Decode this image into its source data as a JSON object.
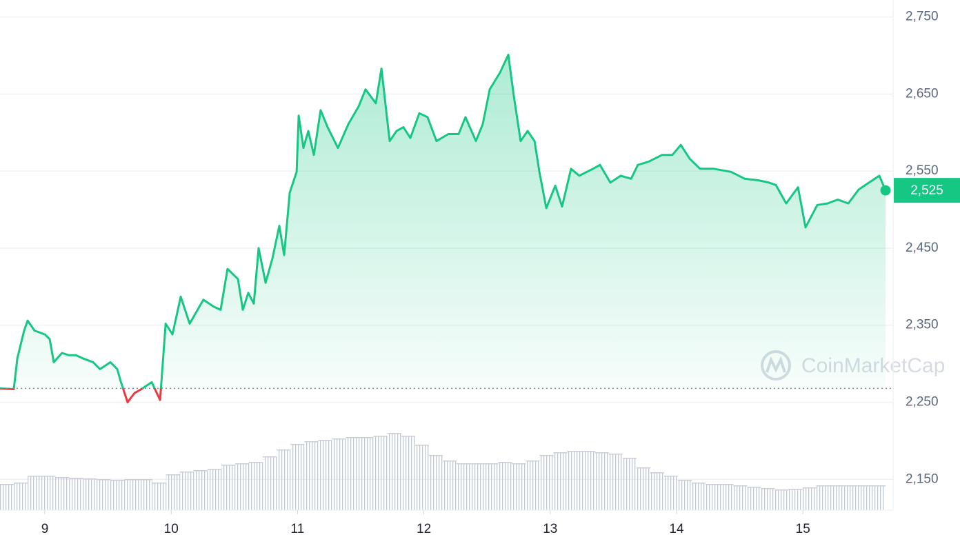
{
  "chart_data": {
    "type": "line",
    "x": [
      8.645,
      8.754,
      8.782,
      8.836,
      8.864,
      8.918,
      9.0,
      9.038,
      9.071,
      9.136,
      9.191,
      9.246,
      9.3,
      9.382,
      9.437,
      9.519,
      9.573,
      9.601,
      9.655,
      9.71,
      9.764,
      9.846,
      9.912,
      9.956,
      10.01,
      10.075,
      10.146,
      10.255,
      10.337,
      10.391,
      10.446,
      10.528,
      10.567,
      10.61,
      10.654,
      10.692,
      10.747,
      10.802,
      10.856,
      10.894,
      10.938,
      10.993,
      11.009,
      11.047,
      11.085,
      11.129,
      11.183,
      11.238,
      11.32,
      11.402,
      11.484,
      11.538,
      11.62,
      11.664,
      11.729,
      11.784,
      11.838,
      11.893,
      11.964,
      12.029,
      12.1,
      12.193,
      12.275,
      12.329,
      12.412,
      12.466,
      12.521,
      12.603,
      12.668,
      12.712,
      12.766,
      12.821,
      12.876,
      12.914,
      12.969,
      13.04,
      13.094,
      13.165,
      13.23,
      13.339,
      13.394,
      13.476,
      13.558,
      13.64,
      13.694,
      13.776,
      13.886,
      13.967,
      14.033,
      14.104,
      14.186,
      14.295,
      14.431,
      14.54,
      14.65,
      14.732,
      14.786,
      14.868,
      14.961,
      15.021,
      15.114,
      15.195,
      15.277,
      15.359,
      15.441,
      15.523,
      15.605,
      15.654
    ],
    "values": [
      2268,
      2267,
      2307,
      2343,
      2356,
      2343,
      2338,
      2332,
      2302,
      2314,
      2311,
      2311,
      2307,
      2302,
      2293,
      2302,
      2293,
      2277,
      2250,
      2262,
      2267,
      2276,
      2253,
      2352,
      2338,
      2387,
      2352,
      2383,
      2374,
      2370,
      2423,
      2410,
      2370,
      2392,
      2378,
      2450,
      2405,
      2437,
      2479,
      2441,
      2522,
      2549,
      2622,
      2580,
      2602,
      2571,
      2629,
      2607,
      2580,
      2611,
      2634,
      2656,
      2638,
      2683,
      2589,
      2602,
      2607,
      2593,
      2625,
      2620,
      2589,
      2598,
      2598,
      2620,
      2589,
      2611,
      2656,
      2678,
      2701,
      2647,
      2589,
      2602,
      2589,
      2549,
      2502,
      2531,
      2504,
      2553,
      2544,
      2553,
      2558,
      2535,
      2544,
      2540,
      2558,
      2562,
      2571,
      2571,
      2584,
      2566,
      2553,
      2553,
      2549,
      2540,
      2538,
      2535,
      2532,
      2508,
      2529,
      2477,
      2506,
      2508,
      2513,
      2508,
      2526,
      2535,
      2544,
      2525
    ],
    "up_color": "#16c784",
    "down_color": "#ea3943",
    "reference_line": 2268,
    "last_price_label": {
      "value": 2525,
      "label": "2,525"
    },
    "volume": {
      "values": [
        38,
        40,
        50,
        50,
        48,
        47,
        46,
        45,
        44,
        45,
        45,
        40,
        52,
        56,
        58,
        60,
        66,
        68,
        70,
        78,
        88,
        96,
        100,
        102,
        104,
        106,
        106,
        108,
        112,
        108,
        95,
        80,
        72,
        68,
        68,
        68,
        70,
        68,
        72,
        80,
        84,
        86,
        86,
        84,
        82,
        76,
        62,
        55,
        50,
        44,
        40,
        38,
        38,
        36,
        34,
        32,
        30,
        31,
        33,
        36,
        36,
        36,
        36,
        36
      ],
      "lim": [
        0,
        140
      ],
      "color": "#c9ced6"
    },
    "xlim": [
      8.645,
      15.714
    ],
    "xticks": [
      9,
      10,
      11,
      12,
      13,
      14,
      15
    ],
    "ylim": [
      2110,
      2772
    ],
    "yticks": [
      {
        "value": 2150,
        "label": "2,150"
      },
      {
        "value": 2250,
        "label": "2,250"
      },
      {
        "value": 2350,
        "label": "2,350"
      },
      {
        "value": 2450,
        "label": "2,450"
      },
      {
        "value": 2550,
        "label": "2,550"
      },
      {
        "value": 2650,
        "label": "2,650"
      },
      {
        "value": 2750,
        "label": "2,750"
      }
    ],
    "grid": true,
    "watermark": "CoinMarketCap"
  }
}
